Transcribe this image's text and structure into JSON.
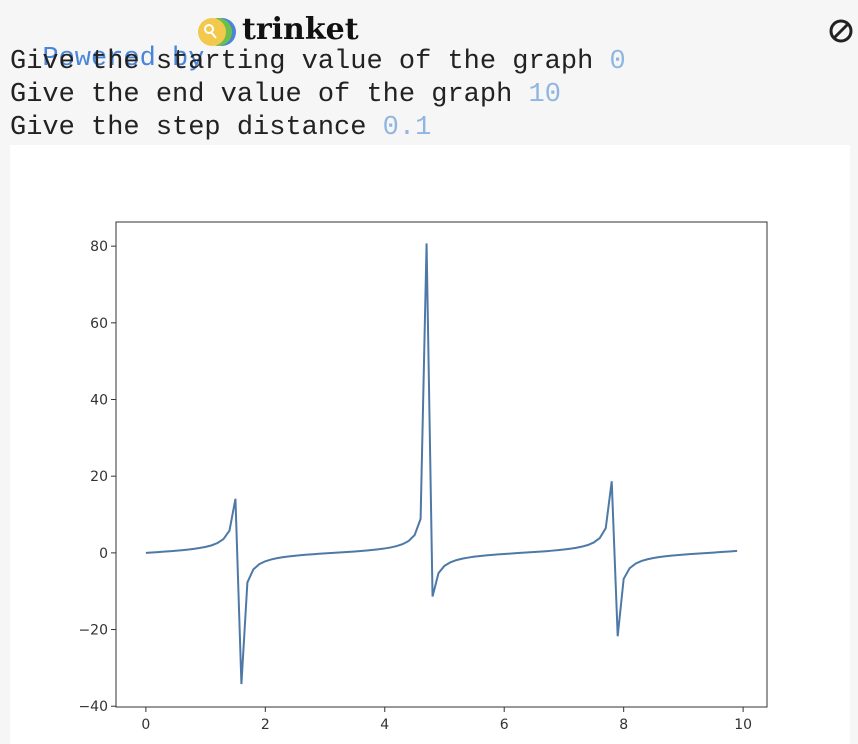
{
  "header": {
    "powered_by": "Powered by",
    "brand": "trinket"
  },
  "console": [
    {
      "prompt": "Give the starting value of the graph",
      "input": "0"
    },
    {
      "prompt": "Give the end value of the graph",
      "input": "10"
    },
    {
      "prompt": "Give the step distance",
      "input": "0.1"
    }
  ],
  "chart_data": {
    "type": "line",
    "x": [
      0,
      0.1,
      0.2,
      0.3,
      0.4,
      0.5,
      0.6,
      0.7,
      0.8,
      0.9,
      1.0,
      1.1,
      1.2,
      1.3,
      1.4,
      1.5,
      1.6,
      1.7,
      1.8,
      1.9,
      2.0,
      2.1,
      2.2,
      2.3,
      2.4,
      2.5,
      2.6,
      2.7,
      2.8,
      2.9,
      3.0,
      3.1,
      3.2,
      3.3,
      3.4,
      3.5,
      3.6,
      3.7,
      3.8,
      3.9,
      4.0,
      4.1,
      4.2,
      4.3,
      4.4,
      4.5,
      4.6,
      4.7,
      4.8,
      4.9,
      5.0,
      5.1,
      5.2,
      5.3,
      5.4,
      5.5,
      5.6,
      5.7,
      5.8,
      5.9,
      6.0,
      6.1,
      6.2,
      6.3,
      6.4,
      6.5,
      6.6,
      6.7,
      6.8,
      6.9,
      7.0,
      7.1,
      7.2,
      7.3,
      7.4,
      7.5,
      7.6,
      7.7,
      7.8,
      7.9,
      8.0,
      8.1,
      8.2,
      8.3,
      8.4,
      8.5,
      8.6,
      8.7,
      8.8,
      8.9,
      9.0,
      9.1,
      9.2,
      9.3,
      9.4,
      9.5,
      9.6,
      9.7,
      9.8,
      9.9
    ],
    "series": [
      {
        "color": "#4e79a7",
        "values": [
          0,
          0.1,
          0.2,
          0.31,
          0.42,
          0.55,
          0.68,
          0.84,
          1.03,
          1.26,
          1.56,
          1.96,
          2.57,
          3.6,
          5.8,
          14.1,
          -34.23,
          -7.7,
          -4.29,
          -2.93,
          -2.19,
          -1.71,
          -1.37,
          -1.12,
          -0.92,
          -0.75,
          -0.6,
          -0.47,
          -0.36,
          -0.24,
          -0.14,
          -0.04,
          0.06,
          0.16,
          0.26,
          0.37,
          0.49,
          0.63,
          0.77,
          0.95,
          1.16,
          1.42,
          1.78,
          2.28,
          3.1,
          4.64,
          8.86,
          80.71,
          -11.38,
          -5.27,
          -3.38,
          -2.45,
          -1.89,
          -1.5,
          -1.22,
          -0.99,
          -0.81,
          -0.65,
          -0.52,
          -0.4,
          -0.29,
          -0.19,
          -0.08,
          0.02,
          0.12,
          0.22,
          0.33,
          0.44,
          0.57,
          0.71,
          0.87,
          1.07,
          1.3,
          1.62,
          2.05,
          2.71,
          3.86,
          6.44,
          18.68,
          -21.75,
          -6.8,
          -4.01,
          -2.8,
          -2.11,
          -1.66,
          -1.33,
          -1.08,
          -0.89,
          -0.72,
          -0.58,
          -0.45,
          -0.34,
          -0.23,
          -0.12,
          -0.02,
          0.08,
          0.18,
          0.28,
          0.39,
          0.52
        ]
      }
    ],
    "xlim": [
      -0.5,
      10.4
    ],
    "ylim": [
      -40.2,
      86.3
    ],
    "xticks": [
      0,
      2,
      4,
      6,
      8,
      10
    ],
    "yticks": [
      {
        "value": -40,
        "label": "−40"
      },
      {
        "value": -20,
        "label": "−20"
      },
      0,
      20,
      40,
      60,
      80
    ]
  }
}
